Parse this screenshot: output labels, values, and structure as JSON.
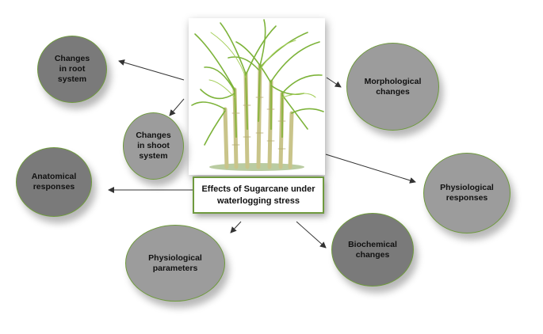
{
  "title": "Effects of Sugarcane under\nwaterlogging stress",
  "nodes": {
    "root": "Changes\nin root\nsystem",
    "shoot": "Changes\nin shoot\nsystem",
    "anatomical": "Anatomical\nresponses",
    "physiological_parameters": "Physiological\nparameters",
    "biochemical": "Biochemical\nchanges",
    "physiological_responses": "Physiological\nresponses",
    "morphological": "Morphological\nchanges"
  },
  "colors": {
    "node_dark": "#7a7a7a",
    "node_light": "#9c9c9c",
    "border_green": "#6f9a3e",
    "arrow": "#333333"
  },
  "illustration": {
    "subject": "sugarcane-plant-icon"
  }
}
